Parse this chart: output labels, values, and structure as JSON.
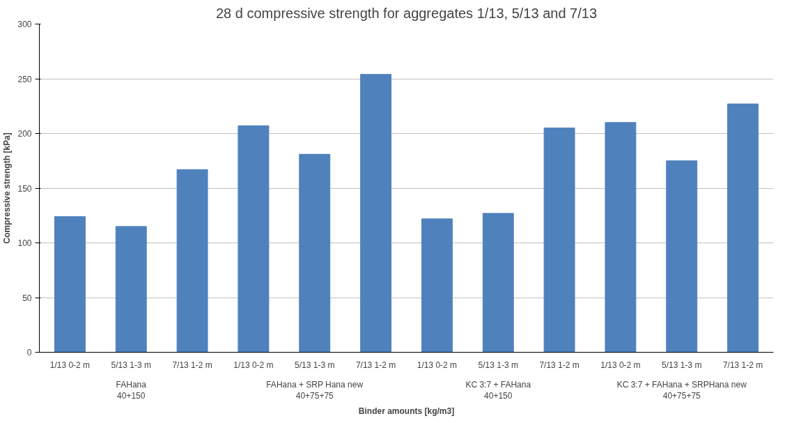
{
  "chart_data": {
    "type": "bar",
    "title": "28 d compressive strength for aggregates 1/13, 5/13 and 7/13",
    "xlabel": "Binder amounts [kg/m3]",
    "ylabel": "Compressive strength [kPa]",
    "categories": [
      "1/13 0-2 m",
      "5/13 1-3 m",
      "7/13 1-2 m",
      "1/13 0-2 m",
      "5/13 1-3 m",
      "7/13 1-2 m",
      "1/13 0-2 m",
      "5/13 1-3 m",
      "7/13 1-2 m",
      "1/13 0-2 m",
      "5/13 1-3 m",
      "7/13 1-2 m"
    ],
    "values": [
      124,
      115,
      167,
      207,
      181,
      254,
      122,
      127,
      205,
      210,
      175,
      227
    ],
    "color": "#4f81bd",
    "ylim": [
      0,
      300
    ],
    "yticks": [
      0,
      50,
      100,
      150,
      200,
      250,
      300
    ],
    "grid": "y",
    "annotations": [
      "FAHana\n40+150",
      "FAHana + SRP Hana new\n40+75+75",
      "KC 3:7 + FAHana\n40+150",
      "KC 3:7 + FAHana + SRPHana new\n40+75+75"
    ]
  }
}
